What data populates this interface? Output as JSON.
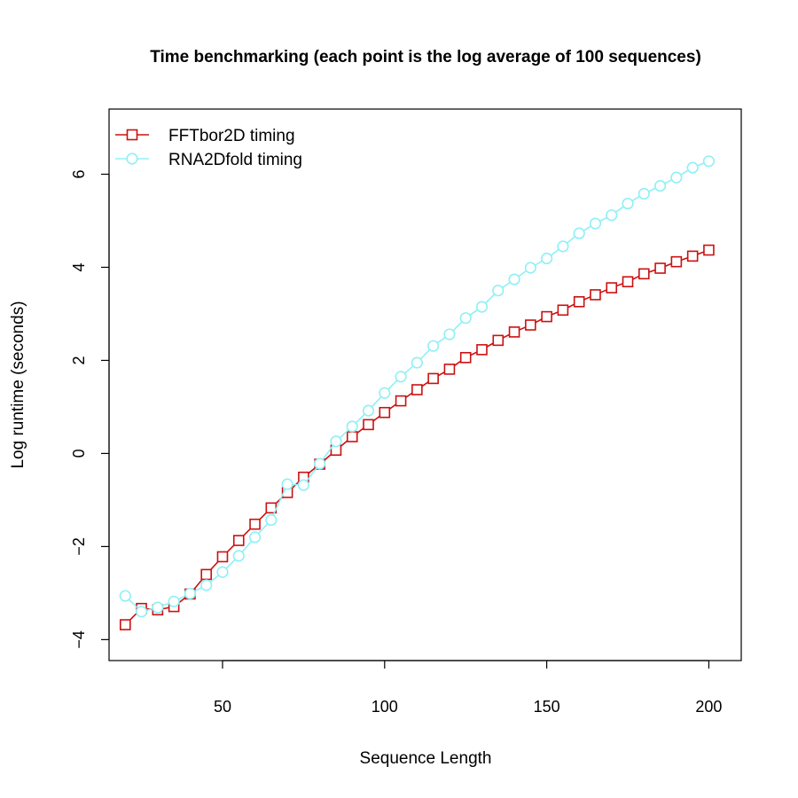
{
  "chart_data": {
    "type": "line",
    "title": "Time benchmarking (each point is the log average of 100 sequences)",
    "xlabel": "Sequence Length",
    "ylabel": "Log runtime (seconds)",
    "xlim": [
      15,
      210
    ],
    "ylim": [
      -4.45,
      7.4
    ],
    "xticks": [
      50,
      100,
      150,
      200
    ],
    "yticks": [
      -4,
      -2,
      0,
      2,
      4,
      6
    ],
    "ytick_labels": [
      "−4",
      "−2",
      "0",
      "2",
      "4",
      "6"
    ],
    "grid": false,
    "legend_position": "top-left",
    "x": [
      20,
      25,
      30,
      35,
      40,
      45,
      50,
      55,
      60,
      65,
      70,
      75,
      80,
      85,
      90,
      95,
      100,
      105,
      110,
      115,
      120,
      125,
      130,
      135,
      140,
      145,
      150,
      155,
      160,
      165,
      170,
      175,
      180,
      185,
      190,
      195,
      200
    ],
    "series": [
      {
        "name": "FFTbor2D timing",
        "color": "#cc1010",
        "marker": "square",
        "values": [
          -3.68,
          -3.33,
          -3.36,
          -3.29,
          -3.02,
          -2.6,
          -2.22,
          -1.87,
          -1.52,
          -1.17,
          -0.84,
          -0.51,
          -0.23,
          0.07,
          0.36,
          0.62,
          0.88,
          1.13,
          1.37,
          1.61,
          1.81,
          2.06,
          2.23,
          2.43,
          2.61,
          2.76,
          2.94,
          3.08,
          3.26,
          3.41,
          3.56,
          3.69,
          3.86,
          3.98,
          4.12,
          4.24,
          4.37
        ]
      },
      {
        "name": "RNA2Dfold timing",
        "color": "#8ff0f5",
        "marker": "circle",
        "values": [
          -3.06,
          -3.4,
          -3.31,
          -3.18,
          -3.01,
          -2.83,
          -2.55,
          -2.2,
          -1.8,
          -1.43,
          -0.66,
          -0.68,
          -0.22,
          0.26,
          0.58,
          0.92,
          1.3,
          1.65,
          1.95,
          2.31,
          2.56,
          2.91,
          3.15,
          3.5,
          3.74,
          3.99,
          4.19,
          4.45,
          4.73,
          4.94,
          5.12,
          5.37,
          5.58,
          5.75,
          5.93,
          6.14,
          6.28
        ]
      }
    ]
  }
}
